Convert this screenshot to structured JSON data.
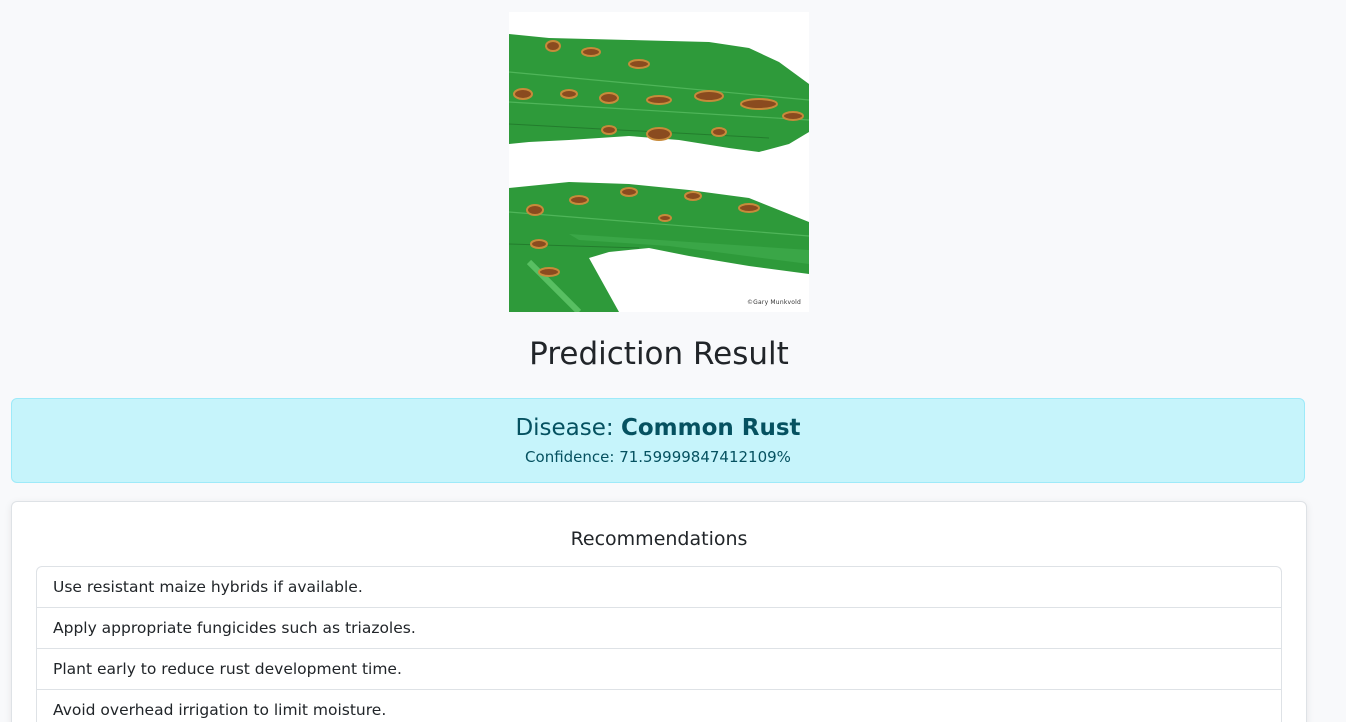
{
  "image": {
    "credit": "©Gary Munkvold"
  },
  "result": {
    "title": "Prediction Result",
    "disease_label": "Disease:",
    "disease_name": "Common Rust",
    "confidence_text": "Confidence: 71.59999847412109%"
  },
  "recommendations": {
    "title": "Recommendations",
    "items": [
      "Use resistant maize hybrids if available.",
      "Apply appropriate fungicides such as triazoles.",
      "Plant early to reduce rust development time.",
      "Avoid overhead irrigation to limit moisture."
    ]
  },
  "colors": {
    "alert_bg": "#c6f4fb",
    "alert_text": "#055160",
    "leaf_green": "#2e9a3a",
    "lesion_brown": "#8a4b1f"
  }
}
